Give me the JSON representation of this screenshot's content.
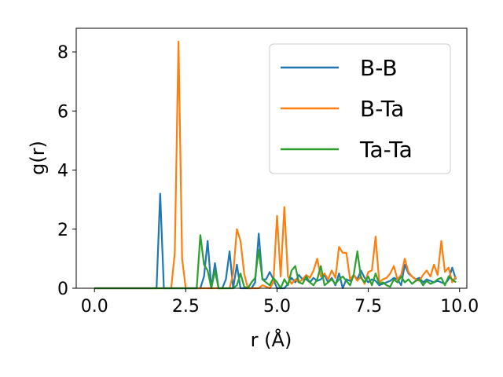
{
  "chart_data": {
    "type": "line",
    "xlabel": "r (Å)",
    "ylabel": "g(r)",
    "xlim": [
      -0.5,
      10.2
    ],
    "ylim": [
      0,
      8.8
    ],
    "xticks": [
      0.0,
      2.5,
      5.0,
      7.5,
      10.0
    ],
    "xtick_labels": [
      "0.0",
      "2.5",
      "5.0",
      "7.5",
      "10.0"
    ],
    "yticks": [
      0,
      2,
      4,
      6,
      8
    ],
    "ytick_labels": [
      "0",
      "2",
      "4",
      "6",
      "8"
    ],
    "grid": false,
    "legend_position": "top-right",
    "series": [
      {
        "name": "B-B",
        "color": "#1f77b4",
        "x": [
          0.0,
          1.7,
          1.8,
          1.9,
          2.9,
          3.0,
          3.1,
          3.2,
          3.3,
          3.4,
          3.5,
          3.6,
          3.7,
          3.8,
          3.9,
          4.0,
          4.1,
          4.2,
          4.3,
          4.4,
          4.5,
          4.6,
          4.7,
          4.8,
          4.9,
          5.0,
          5.1,
          5.2,
          5.3,
          5.4,
          5.5,
          5.6,
          5.7,
          5.8,
          5.9,
          6.0,
          6.1,
          6.2,
          6.3,
          6.4,
          6.5,
          6.6,
          6.7,
          6.8,
          6.9,
          7.0,
          7.1,
          7.2,
          7.3,
          7.4,
          7.5,
          7.6,
          7.7,
          7.8,
          7.9,
          8.0,
          8.1,
          8.2,
          8.3,
          8.4,
          8.5,
          8.6,
          8.7,
          8.8,
          8.9,
          9.0,
          9.1,
          9.2,
          9.3,
          9.4,
          9.5,
          9.6,
          9.7,
          9.8,
          9.9
        ],
        "y": [
          0,
          0,
          3.2,
          0,
          0,
          0.4,
          1.6,
          0,
          0.85,
          0,
          0,
          0.3,
          1.25,
          0,
          0.8,
          0,
          0,
          0,
          0,
          0.2,
          1.85,
          0.3,
          0.3,
          0.55,
          0.3,
          0,
          0,
          0,
          0.15,
          0.35,
          0.2,
          0.45,
          0.3,
          0.3,
          0.2,
          0.35,
          0.25,
          0.3,
          0.45,
          0.2,
          0.35,
          0.1,
          0.5,
          0,
          0.3,
          0.25,
          0.45,
          0.3,
          0.6,
          0.35,
          0.2,
          0.3,
          0.25,
          0.1,
          0.15,
          0.2,
          0.25,
          0.35,
          0.3,
          0.1,
          0.8,
          0.5,
          0.4,
          0.3,
          0.35,
          0.2,
          0.3,
          0.25,
          0.2,
          0.25,
          0.2,
          0.15,
          0.3,
          0.7,
          0.3
        ]
      },
      {
        "name": "B-Ta",
        "color": "#ff7f0e",
        "x": [
          0.0,
          2.1,
          2.2,
          2.3,
          2.4,
          2.5,
          2.6,
          3.7,
          3.8,
          3.9,
          4.0,
          4.1,
          4.2,
          4.5,
          4.6,
          4.8,
          4.9,
          5.0,
          5.1,
          5.2,
          5.3,
          5.4,
          5.5,
          5.6,
          5.7,
          5.8,
          5.9,
          6.0,
          6.1,
          6.2,
          6.3,
          6.4,
          6.5,
          6.6,
          6.7,
          6.8,
          6.9,
          7.0,
          7.1,
          7.2,
          7.3,
          7.4,
          7.5,
          7.6,
          7.7,
          7.8,
          7.9,
          8.0,
          8.1,
          8.2,
          8.3,
          8.4,
          8.5,
          8.6,
          8.7,
          8.8,
          8.9,
          9.0,
          9.1,
          9.2,
          9.3,
          9.4,
          9.5,
          9.6,
          9.7,
          9.8,
          9.9
        ],
        "y": [
          0,
          0,
          1.2,
          8.35,
          1.0,
          0,
          0,
          0,
          0.5,
          2.0,
          1.6,
          0.5,
          0,
          0,
          0.1,
          0,
          0.2,
          2.45,
          0.4,
          2.75,
          0.4,
          0.15,
          0.3,
          0.2,
          0.3,
          0.45,
          0.35,
          0.6,
          1.0,
          0.4,
          0.5,
          0.3,
          0.6,
          0.35,
          1.4,
          1.2,
          1.2,
          0.3,
          0.45,
          0.25,
          0.4,
          0.15,
          0.55,
          0.6,
          1.75,
          0.2,
          0.3,
          0.35,
          0.5,
          0.75,
          0.3,
          0.45,
          1.0,
          0.55,
          0.4,
          0.3,
          0.25,
          0.45,
          0.6,
          0.4,
          0.8,
          0.45,
          1.6,
          0.55,
          0.7,
          0.2,
          0.4
        ]
      },
      {
        "name": "Ta-Ta",
        "color": "#2ca02c",
        "x": [
          0.0,
          2.8,
          2.9,
          3.0,
          3.1,
          3.2,
          3.3,
          3.4,
          3.5,
          3.6,
          3.7,
          3.8,
          3.9,
          4.0,
          4.1,
          4.2,
          4.3,
          4.4,
          4.5,
          4.6,
          4.7,
          4.8,
          4.9,
          5.0,
          5.1,
          5.2,
          5.3,
          5.4,
          5.5,
          5.6,
          5.7,
          5.8,
          5.9,
          6.0,
          6.1,
          6.2,
          6.3,
          6.4,
          6.5,
          6.6,
          6.7,
          6.8,
          6.9,
          7.0,
          7.1,
          7.2,
          7.3,
          7.4,
          7.5,
          7.6,
          7.7,
          7.8,
          7.9,
          8.0,
          8.1,
          8.2,
          8.3,
          8.4,
          8.5,
          8.6,
          8.7,
          8.8,
          8.9,
          9.0,
          9.1,
          9.2,
          9.3,
          9.4,
          9.5,
          9.6,
          9.7,
          9.8,
          9.9
        ],
        "y": [
          0,
          0,
          1.8,
          0.8,
          0.6,
          0,
          0.6,
          0,
          0,
          0,
          0,
          0,
          0.1,
          0.5,
          0.05,
          0,
          0.2,
          0.35,
          1.3,
          0.3,
          0.2,
          0.1,
          0.35,
          0.2,
          0,
          0.3,
          0.1,
          0.6,
          0.75,
          0.2,
          0.15,
          0.4,
          0.2,
          0.1,
          0.3,
          0.75,
          0.1,
          0.2,
          0.3,
          0.15,
          0.3,
          0.4,
          0.25,
          0.1,
          0.45,
          1.25,
          0.35,
          0.2,
          0.4,
          0.1,
          0.5,
          0.15,
          0.2,
          0.1,
          0.05,
          0.3,
          0.2,
          0.4,
          0.2,
          0.3,
          0.15,
          0.25,
          0.3,
          0.1,
          0.25,
          0.15,
          0.2,
          0.3,
          0.35,
          0.1,
          0.4,
          0.3,
          0.2
        ]
      }
    ]
  }
}
